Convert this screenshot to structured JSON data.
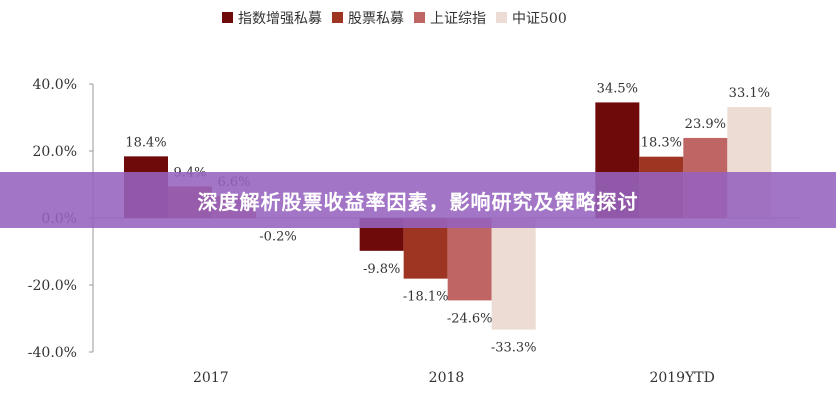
{
  "overlay_title": "深度解析股票收益率因素，影响研究及策略探讨",
  "chart_data": {
    "type": "bar",
    "title": "",
    "xlabel": "",
    "ylabel": "",
    "categories": [
      "2017",
      "2018",
      "2019YTD"
    ],
    "series": [
      {
        "name": "指数增强私募",
        "color": "#6e0a0a",
        "values": [
          18.4,
          -9.8,
          34.5
        ],
        "labels": [
          "18.4%",
          "-9.8%",
          "34.5%"
        ]
      },
      {
        "name": "股票私募",
        "color": "#9e3522",
        "values": [
          9.4,
          -18.1,
          18.3
        ],
        "labels": [
          "9.4%",
          "-18.1%",
          "18.3%"
        ]
      },
      {
        "name": "上证综指",
        "color": "#bf6563",
        "values": [
          6.6,
          -24.6,
          23.9
        ],
        "labels": [
          "6.6%",
          "-24.6%",
          "23.9%"
        ]
      },
      {
        "name": "中证500",
        "color": "#ecdcd3",
        "values": [
          -0.2,
          -33.3,
          33.1
        ],
        "labels": [
          "-0.2%",
          "-33.3%",
          "33.1%"
        ]
      }
    ],
    "ylim": [
      -40,
      40
    ],
    "yticks": [
      40,
      20,
      0,
      -20,
      -40
    ],
    "ytick_labels": [
      "40.0%",
      "20.0%",
      "0.0%",
      "-20.0%",
      "-40.0%"
    ],
    "grid": false,
    "legend_position": "top"
  }
}
